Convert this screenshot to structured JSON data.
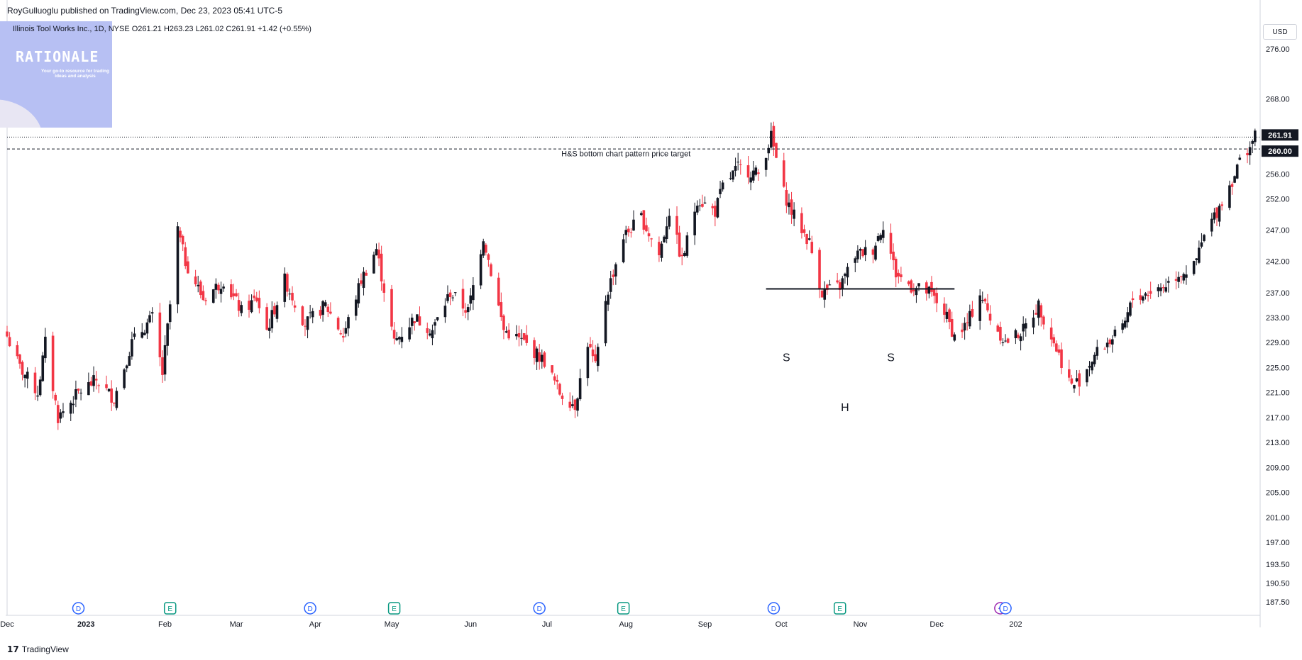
{
  "header": {
    "published_by": "RoyGulluoglu published on TradingView.com, Dec 23, 2023 05:41 UTC-5",
    "legend": "Illinois Tool Works Inc., 1D, NYSE  O261.21  H263.23  L261.02  C261.91  +1.42 (+0.55%)"
  },
  "badge": {
    "title": "RATIONALE",
    "subtitle": "Your go-to resource for trading ideas and analysis"
  },
  "currency_button": "USD",
  "footer": {
    "logo_text": "TradingView",
    "logo_mark": "17"
  },
  "colors": {
    "up": "#131722",
    "down": "#f23645",
    "event_dividend": "#2962ff",
    "event_earnings": "#089981",
    "event_split": "#9c27b0"
  },
  "chart_data": {
    "type": "candlestick",
    "y_axis": {
      "min": 186,
      "max": 280,
      "ticks": [
        276.0,
        268.0,
        256.0,
        252.0,
        247.0,
        242.0,
        237.0,
        233.0,
        229.0,
        225.0,
        221.0,
        217.0,
        213.0,
        209.0,
        205.0,
        201.0,
        197.0,
        193.5,
        190.5,
        187.5
      ]
    },
    "x_axis": {
      "labels": [
        "Dec",
        "2023",
        "Feb",
        "Mar",
        "Apr",
        "May",
        "Jun",
        "Jul",
        "Aug",
        "Sep",
        "Oct",
        "Nov",
        "Dec",
        "202"
      ]
    },
    "price_labels": [
      {
        "text": "261.91",
        "value": 261.91
      },
      {
        "text": "260.00",
        "value": 260.0
      }
    ],
    "lines": {
      "last_price": 261.91,
      "target": 260.0,
      "neckline": {
        "value": 237.6,
        "from": "2023-09-25",
        "to": "2023-12-08"
      }
    },
    "annotations": [
      {
        "text": "H&S bottom chart pattern price target",
        "date": "2023-08-01",
        "value": 258.8
      },
      {
        "text": "S",
        "date": "2023-10-03",
        "value": 226.0
      },
      {
        "text": "H",
        "date": "2023-10-26",
        "value": 218.0
      },
      {
        "text": "S",
        "date": "2023-11-13",
        "value": 226.0
      }
    ],
    "events": [
      {
        "date": "2022-12-29",
        "type": "D"
      },
      {
        "date": "2023-02-03",
        "type": "E"
      },
      {
        "date": "2023-03-30",
        "type": "D"
      },
      {
        "date": "2023-05-02",
        "type": "E"
      },
      {
        "date": "2023-06-28",
        "type": "D"
      },
      {
        "date": "2023-07-31",
        "type": "E"
      },
      {
        "date": "2023-09-28",
        "type": "D"
      },
      {
        "date": "2023-10-24",
        "type": "E"
      },
      {
        "date": "2023-12-26",
        "type": "split"
      },
      {
        "date": "2023-12-28",
        "type": "D"
      }
    ],
    "anchors": [
      [
        "2022-12-01",
        230
      ],
      [
        "2022-12-06",
        225
      ],
      [
        "2022-12-13",
        221
      ],
      [
        "2022-12-16",
        229
      ],
      [
        "2022-12-21",
        217
      ],
      [
        "2022-12-29",
        221
      ],
      [
        "2023-01-05",
        223
      ],
      [
        "2023-01-12",
        220
      ],
      [
        "2023-01-19",
        229
      ],
      [
        "2023-01-27",
        233
      ],
      [
        "2023-01-31",
        224
      ],
      [
        "2023-02-03",
        235
      ],
      [
        "2023-02-06",
        247
      ],
      [
        "2023-02-09",
        242
      ],
      [
        "2023-02-16",
        236
      ],
      [
        "2023-02-24",
        239
      ],
      [
        "2023-03-03",
        234
      ],
      [
        "2023-03-09",
        236
      ],
      [
        "2023-03-13",
        231
      ],
      [
        "2023-03-20",
        239
      ],
      [
        "2023-03-28",
        232
      ],
      [
        "2023-04-05",
        235
      ],
      [
        "2023-04-12",
        230
      ],
      [
        "2023-04-19",
        239
      ],
      [
        "2023-04-25",
        244
      ],
      [
        "2023-05-02",
        229
      ],
      [
        "2023-05-10",
        233
      ],
      [
        "2023-05-17",
        231
      ],
      [
        "2023-05-24",
        237
      ],
      [
        "2023-05-31",
        234
      ],
      [
        "2023-06-06",
        246
      ],
      [
        "2023-06-14",
        231
      ],
      [
        "2023-06-22",
        229
      ],
      [
        "2023-06-30",
        226
      ],
      [
        "2023-07-06",
        221
      ],
      [
        "2023-07-12",
        219
      ],
      [
        "2023-07-17",
        229
      ],
      [
        "2023-07-20",
        225
      ],
      [
        "2023-07-24",
        236
      ],
      [
        "2023-07-31",
        246
      ],
      [
        "2023-08-07",
        249
      ],
      [
        "2023-08-14",
        243
      ],
      [
        "2023-08-18",
        250
      ],
      [
        "2023-08-23",
        242
      ],
      [
        "2023-08-29",
        252
      ],
      [
        "2023-09-05",
        250
      ],
      [
        "2023-09-08",
        254
      ],
      [
        "2023-09-14",
        257
      ],
      [
        "2023-09-22",
        256
      ],
      [
        "2023-09-27",
        262
      ],
      [
        "2023-10-02",
        253
      ],
      [
        "2023-10-05",
        250
      ],
      [
        "2023-10-12",
        245
      ],
      [
        "2023-10-17",
        237
      ],
      [
        "2023-10-24",
        238
      ],
      [
        "2023-10-30",
        243
      ],
      [
        "2023-11-06",
        244
      ],
      [
        "2023-11-10",
        248
      ],
      [
        "2023-11-15",
        240
      ],
      [
        "2023-11-21",
        238
      ],
      [
        "2023-11-28",
        237
      ],
      [
        "2023-12-04",
        234
      ],
      [
        "2023-12-08",
        230
      ],
      [
        "2023-12-13",
        232
      ],
      [
        "2023-12-18",
        237
      ],
      [
        "2023-12-22",
        233
      ],
      [
        "2023-12-28",
        229
      ],
      [
        "2024-01-04",
        231
      ],
      [
        "2024-01-10",
        235
      ],
      [
        "2024-01-17",
        228
      ],
      [
        "2024-01-23",
        222
      ],
      [
        "2024-01-26",
        223
      ],
      [
        "2024-02-01",
        227
      ],
      [
        "2024-02-06",
        229
      ],
      [
        "2024-02-12",
        231
      ],
      [
        "2024-02-16",
        236
      ],
      [
        "2024-02-22",
        237
      ],
      [
        "2024-02-28",
        238
      ],
      [
        "2024-03-05",
        240
      ],
      [
        "2024-03-11",
        241
      ],
      [
        "2024-03-15",
        246
      ],
      [
        "2024-03-20",
        250
      ],
      [
        "2024-03-26",
        255
      ],
      [
        "2024-03-29",
        258
      ],
      [
        "2024-04-04",
        261.91
      ]
    ]
  }
}
